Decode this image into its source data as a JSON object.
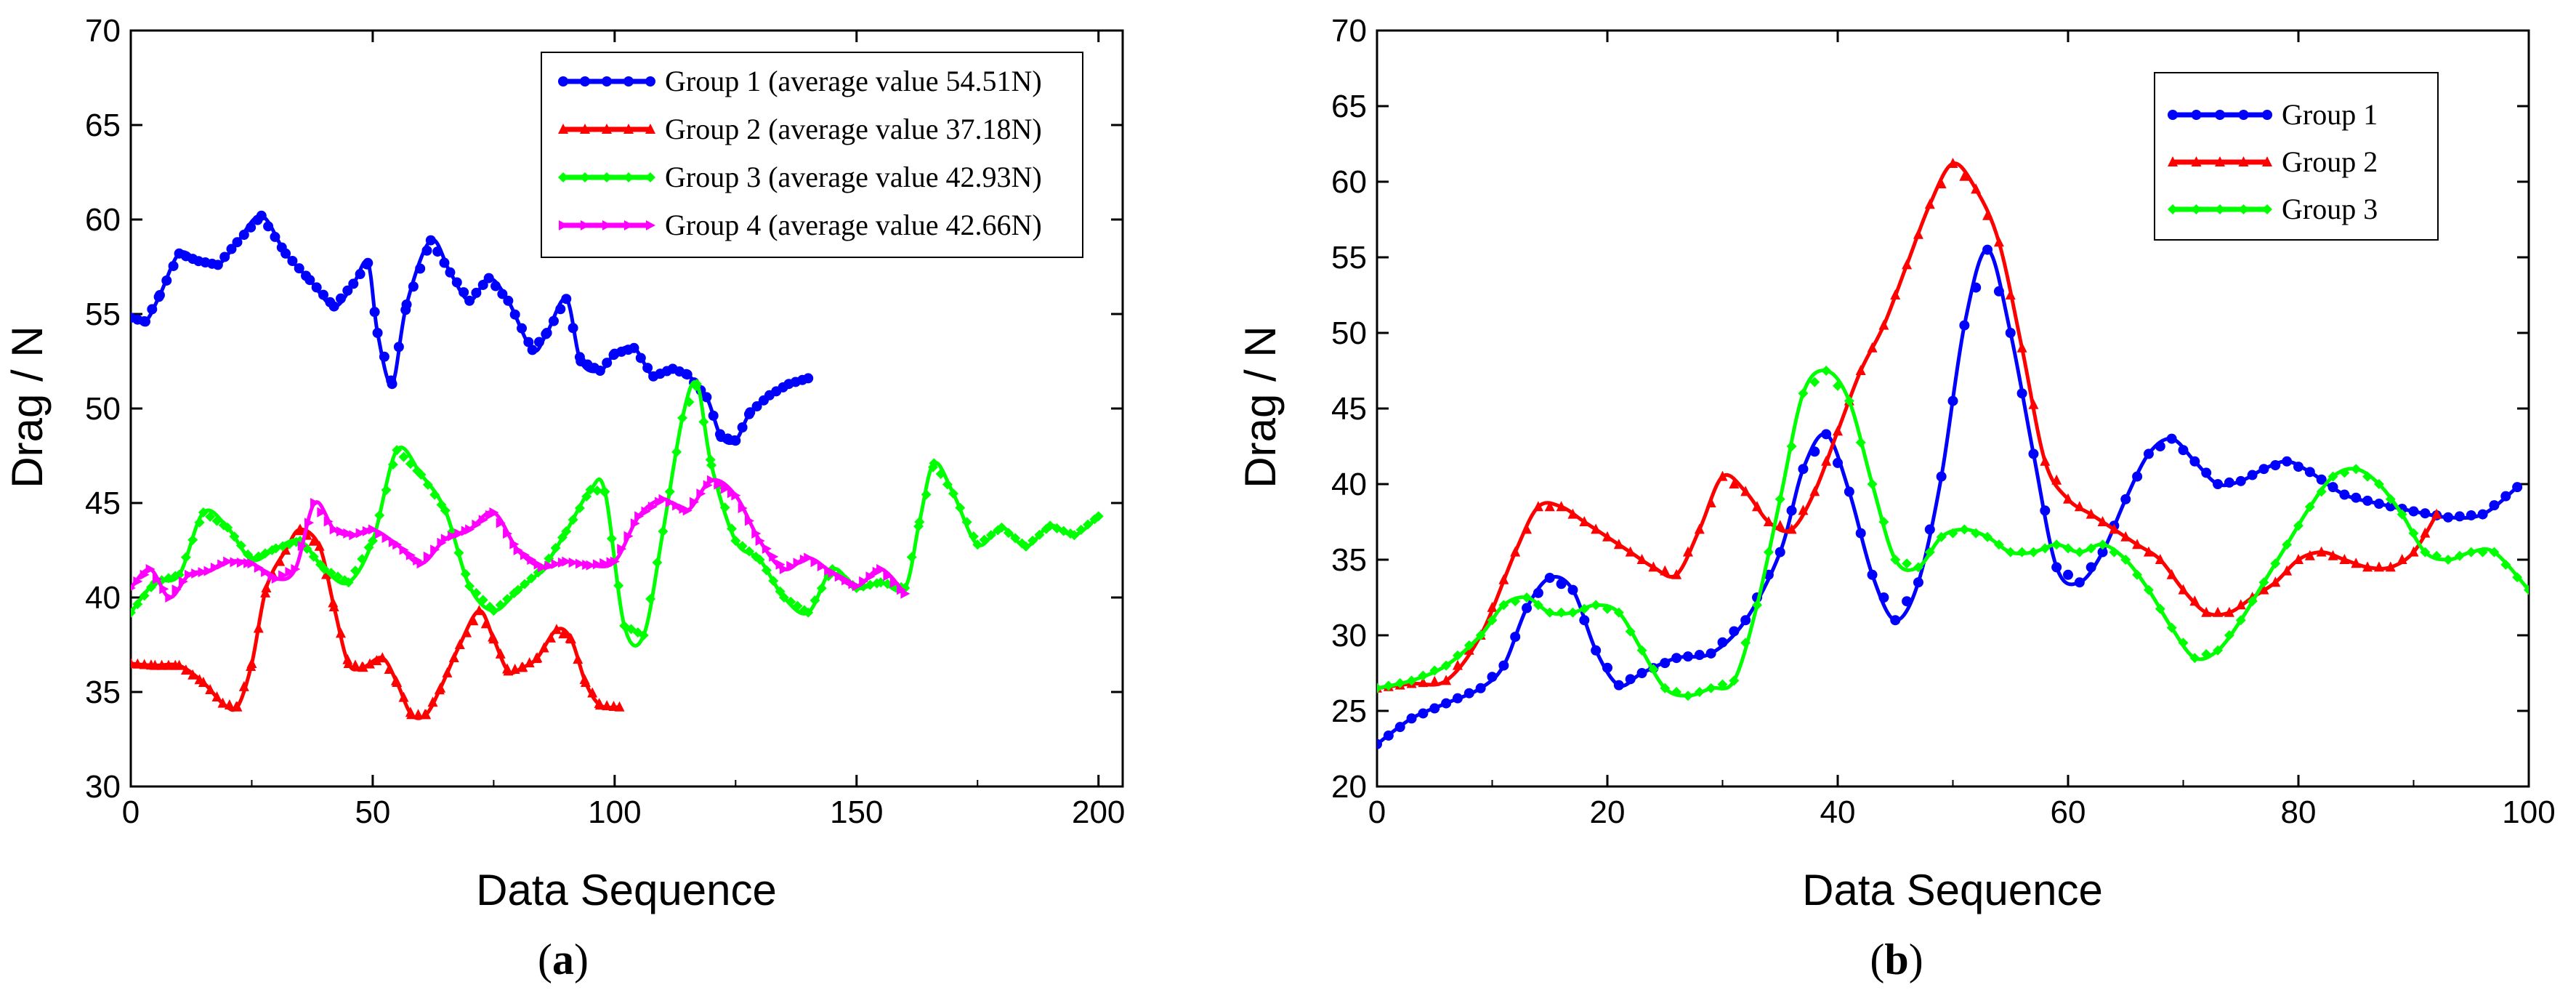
{
  "chart_data": [
    {
      "type": "line",
      "panel": "a",
      "caption_open": "(",
      "caption_letter": "a",
      "caption_close": ")",
      "xlabel": "Data Sequence",
      "ylabel": "Drag / N",
      "xlim": [
        0,
        205
      ],
      "ylim": [
        30,
        70
      ],
      "xticks": [
        0,
        50,
        100,
        150,
        200
      ],
      "yticks": [
        30,
        35,
        40,
        45,
        50,
        55,
        60,
        65,
        70
      ],
      "legend_position": "top-right",
      "series": [
        {
          "name": "Group 1 (average value 54.51N)",
          "color": "#0000ff",
          "marker": "circle",
          "x": [
            0,
            3,
            6,
            10,
            14,
            18,
            22,
            27,
            32,
            37,
            42,
            46,
            49,
            51,
            54,
            57,
            62,
            66,
            70,
            74,
            78,
            83,
            86,
            90,
            93,
            97,
            100,
            104,
            108,
            112,
            115,
            119,
            122,
            125,
            128,
            132,
            136,
            140
          ],
          "y": [
            54.8,
            54.6,
            56.0,
            58.2,
            57.8,
            57.6,
            58.8,
            60.2,
            58.2,
            56.8,
            55.4,
            56.6,
            57.7,
            54.0,
            51.3,
            55.5,
            58.9,
            57.2,
            55.7,
            56.9,
            55.7,
            53.1,
            54.0,
            55.8,
            52.5,
            52.0,
            52.9,
            53.2,
            51.7,
            52.1,
            51.8,
            50.6,
            48.5,
            48.3,
            49.8,
            50.7,
            51.3,
            51.6
          ]
        },
        {
          "name": "Group 2 (average value 37.18N)",
          "color": "#ff0000",
          "marker": "triangle",
          "x": [
            0,
            5,
            10,
            15,
            19,
            22,
            25,
            28,
            32,
            35,
            39,
            42,
            45,
            48,
            52,
            55,
            58,
            61,
            64,
            68,
            72,
            75,
            78,
            81,
            84,
            88,
            91,
            94,
            97,
            101
          ],
          "y": [
            36.5,
            36.4,
            36.4,
            35.5,
            34.4,
            34.2,
            36.5,
            40.5,
            42.5,
            43.6,
            42.7,
            39.5,
            36.5,
            36.3,
            36.8,
            35.5,
            33.8,
            33.8,
            35.2,
            37.5,
            39.3,
            37.8,
            36.1,
            36.3,
            36.8,
            38.3,
            37.8,
            35.5,
            34.3,
            34.2
          ]
        },
        {
          "name": "Group 3 (average value 42.93N)",
          "color": "#00ff00",
          "marker": "diamond",
          "x": [
            0,
            5,
            10,
            15,
            20,
            25,
            30,
            35,
            40,
            45,
            50,
            55,
            60,
            65,
            70,
            75,
            80,
            85,
            90,
            95,
            98,
            102,
            106,
            110,
            114,
            117,
            120,
            125,
            130,
            135,
            140,
            145,
            150,
            155,
            160,
            163,
            166,
            170,
            175,
            180,
            185,
            190,
            195,
            200
          ],
          "y": [
            39.2,
            40.8,
            41.2,
            44.5,
            43.7,
            42.0,
            42.6,
            43.0,
            41.5,
            40.8,
            43.0,
            47.8,
            46.5,
            44.6,
            40.6,
            39.3,
            40.4,
            41.5,
            43.5,
            45.7,
            45.6,
            38.5,
            38.0,
            43.5,
            49.5,
            51.3,
            47.0,
            43.0,
            42.0,
            40.0,
            39.2,
            41.5,
            40.5,
            40.8,
            40.5,
            44.0,
            47.1,
            45.5,
            42.8,
            43.7,
            42.7,
            43.8,
            43.3,
            44.3
          ]
        },
        {
          "name": "Group 4 (average value 42.66N)",
          "color": "#ff00ff",
          "marker": "triangle-right",
          "x": [
            0,
            4,
            8,
            12,
            16,
            20,
            25,
            30,
            34,
            38,
            42,
            46,
            50,
            55,
            60,
            65,
            70,
            75,
            80,
            85,
            90,
            95,
            100,
            105,
            110,
            115,
            120,
            125,
            130,
            135,
            140,
            145,
            150,
            155,
            160
          ],
          "y": [
            40.5,
            41.5,
            40.0,
            41.2,
            41.4,
            41.9,
            41.8,
            41.0,
            41.5,
            45.0,
            43.6,
            43.3,
            43.6,
            42.8,
            41.8,
            43.1,
            43.6,
            44.5,
            42.5,
            41.6,
            41.9,
            41.7,
            41.9,
            44.3,
            45.2,
            44.6,
            46.2,
            45.4,
            43.0,
            41.5,
            42.1,
            41.3,
            40.6,
            41.5,
            40.2
          ]
        }
      ]
    },
    {
      "type": "line",
      "panel": "b",
      "caption_open": "(",
      "caption_letter": "b",
      "caption_close": ")",
      "xlabel": "Data Sequence",
      "ylabel": "Drag / N",
      "xlim": [
        0,
        100
      ],
      "ylim": [
        20,
        70
      ],
      "xticks": [
        0,
        20,
        40,
        60,
        80,
        100
      ],
      "yticks": [
        20,
        25,
        30,
        35,
        40,
        45,
        50,
        55,
        60,
        65,
        70
      ],
      "legend_position": "top-right",
      "series": [
        {
          "name": "Group 1",
          "color": "#0000ff",
          "marker": "circle",
          "x": [
            0,
            3,
            6,
            9,
            11,
            13,
            15,
            17,
            19,
            21,
            23,
            26,
            29,
            32,
            35,
            37,
            39,
            41,
            43,
            45,
            47,
            49,
            51,
            53,
            55,
            57,
            59,
            61,
            63,
            65,
            67,
            69,
            71,
            73,
            75,
            77,
            79,
            81,
            84,
            87,
            90,
            93,
            96,
            99
          ],
          "y": [
            22.8,
            24.5,
            25.5,
            26.5,
            28.0,
            31.8,
            33.8,
            33.0,
            29.0,
            26.7,
            27.5,
            28.5,
            28.8,
            31.0,
            35.5,
            41.0,
            43.3,
            39.5,
            34.0,
            31.0,
            33.5,
            40.5,
            50.5,
            55.5,
            50.0,
            42.0,
            34.5,
            33.5,
            35.5,
            39.0,
            42.0,
            43.0,
            41.5,
            40.0,
            40.2,
            41.0,
            41.5,
            40.8,
            39.3,
            38.7,
            38.2,
            37.8,
            38.0,
            39.8
          ]
        },
        {
          "name": "Group 2",
          "color": "#ff0000",
          "marker": "triangle",
          "x": [
            0,
            3,
            6,
            9,
            12,
            14,
            16,
            18,
            20,
            22,
            24,
            26,
            28,
            30,
            32,
            34,
            36,
            38,
            40,
            42,
            44,
            46,
            48,
            50,
            52,
            54,
            56,
            58,
            60,
            62,
            64,
            66,
            68,
            70,
            72,
            74,
            76,
            78,
            80,
            82,
            84,
            86,
            88,
            90,
            92
          ],
          "y": [
            26.5,
            26.8,
            27.0,
            30.0,
            35.5,
            38.5,
            38.5,
            37.5,
            36.5,
            35.5,
            34.5,
            34.0,
            37.0,
            40.5,
            39.5,
            37.5,
            37.0,
            39.5,
            43.5,
            47.5,
            50.5,
            54.5,
            58.5,
            61.2,
            59.5,
            56.0,
            49.0,
            41.5,
            39.0,
            38.0,
            37.0,
            36.0,
            35.0,
            33.0,
            31.5,
            31.5,
            32.5,
            33.5,
            35.0,
            35.5,
            35.0,
            34.5,
            34.5,
            35.5,
            38.0
          ]
        },
        {
          "name": "Group 3",
          "color": "#00ff00",
          "marker": "diamond",
          "x": [
            0,
            3,
            6,
            9,
            11,
            13,
            15,
            17,
            19,
            21,
            23,
            25,
            27,
            29,
            31,
            33,
            35,
            37,
            39,
            41,
            43,
            45,
            47,
            49,
            51,
            53,
            55,
            57,
            59,
            61,
            63,
            65,
            67,
            69,
            71,
            73,
            75,
            77,
            79,
            81,
            83,
            85,
            87,
            89,
            91,
            93,
            95,
            97,
            100
          ],
          "y": [
            26.5,
            27.0,
            28.0,
            30.0,
            32.0,
            32.5,
            31.5,
            31.5,
            32.0,
            31.5,
            29.0,
            26.5,
            26.0,
            26.5,
            27.0,
            32.0,
            39.0,
            46.0,
            47.5,
            45.5,
            40.0,
            35.0,
            34.5,
            36.5,
            37.0,
            36.5,
            35.5,
            35.5,
            36.0,
            35.5,
            36.0,
            35.0,
            33.0,
            30.5,
            28.5,
            29.0,
            31.0,
            33.5,
            36.0,
            38.5,
            40.5,
            41.0,
            40.0,
            38.0,
            35.5,
            35.0,
            35.5,
            35.5,
            33.0
          ]
        }
      ]
    }
  ]
}
